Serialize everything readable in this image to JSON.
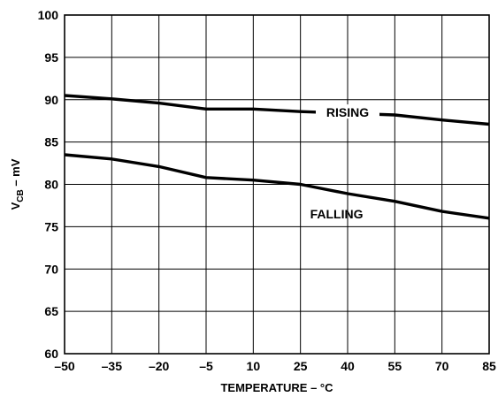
{
  "chart_data": {
    "type": "line",
    "xlabel": "TEMPERATURE – °C",
    "ylabel_main": "V",
    "ylabel_sub": "CB",
    "ylabel_suffix": " – mV",
    "xlim": [
      -50,
      85
    ],
    "ylim": [
      60,
      100
    ],
    "x_ticks": [
      -50,
      -35,
      -20,
      -5,
      10,
      25,
      40,
      55,
      70,
      85
    ],
    "x_tick_labels": [
      "–50",
      "–35",
      "–20",
      "–5",
      "10",
      "25",
      "40",
      "55",
      "70",
      "85"
    ],
    "y_ticks": [
      60,
      65,
      70,
      75,
      80,
      85,
      90,
      95,
      100
    ],
    "y_tick_labels": [
      "60",
      "65",
      "70",
      "75",
      "80",
      "85",
      "90",
      "95",
      "100"
    ],
    "grid": true,
    "legend": "inline",
    "series": [
      {
        "name": "RISING",
        "x": [
          -50,
          -35,
          -20,
          -5,
          10,
          25,
          40,
          55,
          70,
          85
        ],
        "y": [
          90.5,
          90.1,
          89.6,
          88.9,
          88.9,
          88.6,
          88.4,
          88.2,
          87.6,
          87.1
        ]
      },
      {
        "name": "FALLING",
        "x": [
          -50,
          -35,
          -20,
          -5,
          10,
          25,
          40,
          55,
          70,
          85
        ],
        "y": [
          83.5,
          83.0,
          82.1,
          80.8,
          80.5,
          80.0,
          78.9,
          78.0,
          76.8,
          76.0
        ]
      }
    ]
  }
}
